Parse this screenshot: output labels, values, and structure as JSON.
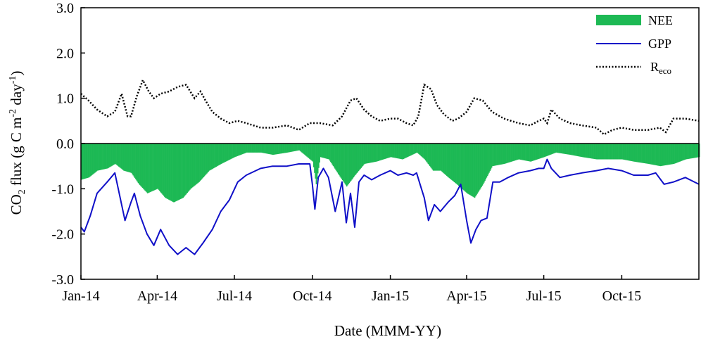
{
  "chart_data": {
    "type": "area",
    "xlabel": "Date (MMM-YY)",
    "ylabel": {
      "main": "CO",
      "sub1": "2",
      "mid": " flux (g C m",
      "sup1": "-2",
      "mid2": " day",
      "sup2": "-1",
      "end": ")"
    },
    "ylim": [
      -3.0,
      3.0
    ],
    "yticks": [
      "-3.0",
      "-2.0",
      "-1.0",
      "0.0",
      "1.0",
      "2.0",
      "3.0"
    ],
    "xlim": [
      "2014-01-01",
      "2015-12-31"
    ],
    "xticks": [
      {
        "date": "2014-01-01",
        "label": "Jan-14"
      },
      {
        "date": "2014-04-01",
        "label": "Apr-14"
      },
      {
        "date": "2014-07-01",
        "label": "Jul-14"
      },
      {
        "date": "2014-10-01",
        "label": "Oct-14"
      },
      {
        "date": "2015-01-01",
        "label": "Jan-15"
      },
      {
        "date": "2015-04-01",
        "label": "Apr-15"
      },
      {
        "date": "2015-07-01",
        "label": "Jul-15"
      },
      {
        "date": "2015-10-01",
        "label": "Oct-15"
      }
    ],
    "grid": false,
    "legend_position": "top-right",
    "legend": [
      {
        "key": "NEE",
        "label": "NEE"
      },
      {
        "key": "GPP",
        "label": "GPP"
      },
      {
        "key": "Reco",
        "label": "R",
        "sub": "eco"
      }
    ],
    "colors": {
      "NEE": "#1db954",
      "GPP": "#1010c8",
      "Reco": "#000000"
    },
    "series": [
      {
        "name": "GPP",
        "x": [
          "2014-01-01",
          "2014-01-05",
          "2014-01-12",
          "2014-01-20",
          "2014-02-01",
          "2014-02-10",
          "2014-02-14",
          "2014-02-22",
          "2014-03-01",
          "2014-03-05",
          "2014-03-12",
          "2014-03-20",
          "2014-03-28",
          "2014-04-05",
          "2014-04-15",
          "2014-04-25",
          "2014-05-05",
          "2014-05-15",
          "2014-05-25",
          "2014-06-05",
          "2014-06-15",
          "2014-06-25",
          "2014-07-05",
          "2014-07-15",
          "2014-08-01",
          "2014-08-15",
          "2014-09-01",
          "2014-09-15",
          "2014-09-28",
          "2014-10-01",
          "2014-10-04",
          "2014-10-08",
          "2014-10-14",
          "2014-10-20",
          "2014-10-28",
          "2014-11-05",
          "2014-11-10",
          "2014-11-15",
          "2014-11-20",
          "2014-11-25",
          "2014-12-01",
          "2014-12-10",
          "2014-12-20",
          "2015-01-01",
          "2015-01-10",
          "2015-01-20",
          "2015-01-28",
          "2015-02-01",
          "2015-02-05",
          "2015-02-10",
          "2015-02-15",
          "2015-02-22",
          "2015-03-01",
          "2015-03-10",
          "2015-03-18",
          "2015-03-25",
          "2015-04-01",
          "2015-04-06",
          "2015-04-12",
          "2015-04-18",
          "2015-04-25",
          "2015-05-02",
          "2015-05-10",
          "2015-05-20",
          "2015-06-01",
          "2015-06-15",
          "2015-06-25",
          "2015-07-01",
          "2015-07-05",
          "2015-07-10",
          "2015-07-20",
          "2015-08-01",
          "2015-08-15",
          "2015-09-01",
          "2015-09-15",
          "2015-10-01",
          "2015-10-15",
          "2015-11-01",
          "2015-11-10",
          "2015-11-20",
          "2015-12-01",
          "2015-12-15",
          "2015-12-31"
        ],
        "values": [
          -1.85,
          -1.95,
          -1.6,
          -1.1,
          -0.85,
          -0.65,
          -1.0,
          -1.7,
          -1.3,
          -1.1,
          -1.6,
          -2.0,
          -2.25,
          -1.9,
          -2.25,
          -2.45,
          -2.3,
          -2.45,
          -2.2,
          -1.9,
          -1.5,
          -1.25,
          -0.85,
          -0.7,
          -0.55,
          -0.5,
          -0.5,
          -0.45,
          -0.45,
          -0.9,
          -1.45,
          -0.75,
          -0.55,
          -0.75,
          -1.5,
          -0.85,
          -1.75,
          -1.1,
          -1.85,
          -0.85,
          -0.7,
          -0.8,
          -0.7,
          -0.6,
          -0.7,
          -0.65,
          -0.7,
          -0.65,
          -0.9,
          -1.2,
          -1.7,
          -1.35,
          -1.5,
          -1.3,
          -1.15,
          -0.9,
          -1.7,
          -2.2,
          -1.9,
          -1.7,
          -1.65,
          -0.85,
          -0.85,
          -0.75,
          -0.65,
          -0.6,
          -0.55,
          -0.55,
          -0.35,
          -0.55,
          -0.75,
          -0.7,
          -0.65,
          -0.6,
          -0.55,
          -0.6,
          -0.7,
          -0.7,
          -0.65,
          -0.9,
          -0.85,
          -0.75,
          -0.9
        ]
      },
      {
        "name": "Reco",
        "x": [
          "2014-01-01",
          "2014-01-10",
          "2014-01-20",
          "2014-02-01",
          "2014-02-10",
          "2014-02-18",
          "2014-02-25",
          "2014-03-01",
          "2014-03-08",
          "2014-03-15",
          "2014-03-22",
          "2014-03-28",
          "2014-04-05",
          "2014-04-15",
          "2014-04-25",
          "2014-05-05",
          "2014-05-15",
          "2014-05-22",
          "2014-05-28",
          "2014-06-05",
          "2014-06-15",
          "2014-06-25",
          "2014-07-05",
          "2014-07-15",
          "2014-08-01",
          "2014-08-15",
          "2014-09-01",
          "2014-09-15",
          "2014-09-28",
          "2014-10-10",
          "2014-10-25",
          "2014-11-05",
          "2014-11-15",
          "2014-11-22",
          "2014-12-01",
          "2014-12-10",
          "2014-12-20",
          "2015-01-01",
          "2015-01-10",
          "2015-01-20",
          "2015-01-28",
          "2015-02-03",
          "2015-02-10",
          "2015-02-18",
          "2015-02-25",
          "2015-03-05",
          "2015-03-15",
          "2015-03-22",
          "2015-04-01",
          "2015-04-10",
          "2015-04-20",
          "2015-05-01",
          "2015-05-15",
          "2015-06-01",
          "2015-06-15",
          "2015-06-25",
          "2015-07-01",
          "2015-07-05",
          "2015-07-10",
          "2015-07-20",
          "2015-08-01",
          "2015-08-15",
          "2015-09-01",
          "2015-09-10",
          "2015-09-20",
          "2015-10-01",
          "2015-10-15",
          "2015-11-01",
          "2015-11-15",
          "2015-11-22",
          "2015-12-01",
          "2015-12-15",
          "2015-12-31"
        ],
        "values": [
          1.1,
          0.95,
          0.75,
          0.6,
          0.7,
          1.1,
          0.6,
          0.6,
          1.05,
          1.4,
          1.15,
          1.0,
          1.1,
          1.15,
          1.25,
          1.3,
          1.0,
          1.15,
          0.95,
          0.7,
          0.55,
          0.45,
          0.5,
          0.45,
          0.35,
          0.35,
          0.4,
          0.3,
          0.45,
          0.45,
          0.4,
          0.6,
          0.95,
          1.0,
          0.75,
          0.6,
          0.5,
          0.55,
          0.55,
          0.45,
          0.4,
          0.6,
          1.3,
          1.2,
          0.85,
          0.65,
          0.5,
          0.55,
          0.7,
          1.0,
          0.95,
          0.7,
          0.55,
          0.45,
          0.4,
          0.5,
          0.55,
          0.45,
          0.75,
          0.55,
          0.45,
          0.4,
          0.35,
          0.2,
          0.3,
          0.35,
          0.3,
          0.3,
          0.35,
          0.25,
          0.55,
          0.55,
          0.5
        ]
      },
      {
        "name": "NEE",
        "x": [
          "2014-01-01",
          "2014-01-10",
          "2014-01-20",
          "2014-02-01",
          "2014-02-10",
          "2014-02-20",
          "2014-03-01",
          "2014-03-10",
          "2014-03-20",
          "2014-04-01",
          "2014-04-10",
          "2014-04-20",
          "2014-05-01",
          "2014-05-10",
          "2014-05-20",
          "2014-06-01",
          "2014-06-15",
          "2014-07-01",
          "2014-07-15",
          "2014-08-01",
          "2014-08-15",
          "2014-09-01",
          "2014-09-15",
          "2014-10-01",
          "2014-10-05",
          "2014-10-10",
          "2014-10-20",
          "2014-11-01",
          "2014-11-10",
          "2014-11-20",
          "2014-12-01",
          "2014-12-15",
          "2015-01-01",
          "2015-01-15",
          "2015-02-01",
          "2015-02-10",
          "2015-02-20",
          "2015-03-01",
          "2015-03-10",
          "2015-03-20",
          "2015-04-01",
          "2015-04-10",
          "2015-04-20",
          "2015-05-01",
          "2015-05-15",
          "2015-06-01",
          "2015-06-15",
          "2015-07-01",
          "2015-07-15",
          "2015-08-01",
          "2015-08-15",
          "2015-09-01",
          "2015-09-15",
          "2015-10-01",
          "2015-10-15",
          "2015-11-01",
          "2015-11-15",
          "2015-12-01",
          "2015-12-15",
          "2015-12-31"
        ],
        "values": [
          -0.8,
          -0.75,
          -0.6,
          -0.55,
          -0.45,
          -0.6,
          -0.65,
          -0.9,
          -1.1,
          -1.0,
          -1.2,
          -1.3,
          -1.2,
          -1.0,
          -0.85,
          -0.6,
          -0.45,
          -0.3,
          -0.2,
          -0.2,
          -0.25,
          -0.2,
          -0.15,
          -0.4,
          -0.9,
          -0.3,
          -0.35,
          -0.7,
          -0.95,
          -0.7,
          -0.45,
          -0.4,
          -0.3,
          -0.35,
          -0.2,
          -0.35,
          -0.6,
          -0.6,
          -0.75,
          -0.9,
          -1.1,
          -1.2,
          -0.9,
          -0.5,
          -0.45,
          -0.35,
          -0.4,
          -0.3,
          -0.2,
          -0.25,
          -0.3,
          -0.35,
          -0.35,
          -0.35,
          -0.4,
          -0.45,
          -0.5,
          -0.45,
          -0.35,
          -0.3
        ]
      }
    ]
  }
}
